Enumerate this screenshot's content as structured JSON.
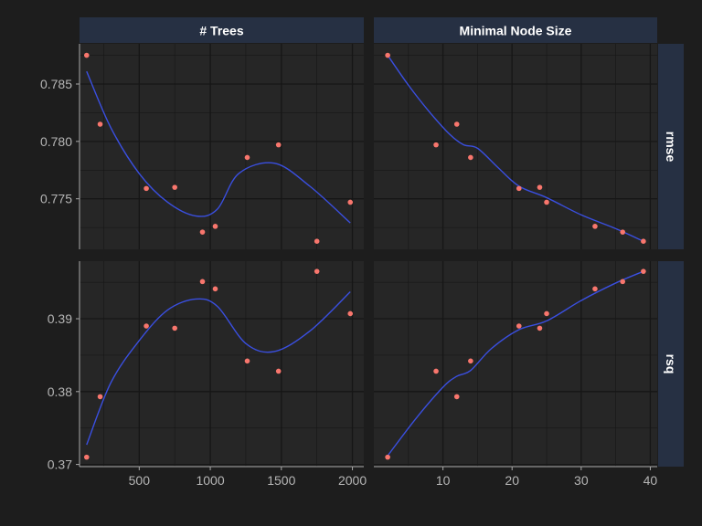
{
  "colors": {
    "background": "#1d1d1d",
    "panel": "#262626",
    "grid": "#161616",
    "strip": "#263043",
    "point": "#f8766d",
    "smooth": "#3a4fe0",
    "axis": "#a9a9a9"
  },
  "chart_data": {
    "type": "scatter",
    "facet_columns": [
      "# Trees",
      "Minimal Node Size"
    ],
    "facet_rows": [
      "rmse",
      "rsq"
    ],
    "x_axes": [
      {
        "column": "# Trees",
        "range": [
          80,
          2080
        ],
        "ticks": [
          500,
          1000,
          1500,
          2000
        ],
        "tick_labels": [
          "500",
          "1000",
          "1500",
          "2000"
        ]
      },
      {
        "column": "Minimal Node Size",
        "range": [
          0,
          41
        ],
        "ticks": [
          10,
          20,
          30,
          40
        ],
        "tick_labels": [
          "10",
          "20",
          "30",
          "40"
        ]
      }
    ],
    "y_axes": [
      {
        "row": "rmse",
        "range": [
          0.7706,
          0.7885
        ],
        "ticks": [
          0.775,
          0.78,
          0.785
        ],
        "tick_labels": [
          "0.775",
          "0.780",
          "0.785"
        ]
      },
      {
        "row": "rsq",
        "range": [
          0.3697,
          0.3979
        ],
        "ticks": [
          0.37,
          0.38,
          0.39
        ],
        "tick_labels": [
          "0.37",
          "0.38",
          "0.39"
        ]
      }
    ],
    "points": [
      {
        "trees": 130,
        "min_n": 2,
        "rmse": 0.7875,
        "rsq": 0.371
      },
      {
        "trees": 225,
        "min_n": 12,
        "rmse": 0.7815,
        "rsq": 0.3793
      },
      {
        "trees": 550,
        "min_n": 21,
        "rmse": 0.7759,
        "rsq": 0.389
      },
      {
        "trees": 750,
        "min_n": 24,
        "rmse": 0.776,
        "rsq": 0.3887
      },
      {
        "trees": 945,
        "min_n": 36,
        "rmse": 0.7721,
        "rsq": 0.3951
      },
      {
        "trees": 1035,
        "min_n": 32,
        "rmse": 0.7726,
        "rsq": 0.3941
      },
      {
        "trees": 1260,
        "min_n": 14,
        "rmse": 0.7786,
        "rsq": 0.3842
      },
      {
        "trees": 1480,
        "min_n": 9,
        "rmse": 0.7797,
        "rsq": 0.3828
      },
      {
        "trees": 1750,
        "min_n": 39,
        "rmse": 0.7713,
        "rsq": 0.3965
      },
      {
        "trees": 1985,
        "min_n": 25,
        "rmse": 0.7747,
        "rsq": 0.3907
      }
    ],
    "smooth": {
      "trees_rmse": [
        [
          130,
          0.7861
        ],
        [
          300,
          0.7812
        ],
        [
          500,
          0.7772
        ],
        [
          700,
          0.7747
        ],
        [
          900,
          0.7735
        ],
        [
          1050,
          0.7741
        ],
        [
          1200,
          0.7772
        ],
        [
          1450,
          0.7781
        ],
        [
          1700,
          0.7761
        ],
        [
          1985,
          0.7729
        ]
      ],
      "min_n_rmse": [
        [
          2,
          0.7875
        ],
        [
          5,
          0.7849
        ],
        [
          8,
          0.7826
        ],
        [
          11,
          0.7806
        ],
        [
          13,
          0.7797
        ],
        [
          15,
          0.7794
        ],
        [
          18,
          0.7777
        ],
        [
          21,
          0.7761
        ],
        [
          25,
          0.7751
        ],
        [
          30,
          0.7736
        ],
        [
          35,
          0.7724
        ],
        [
          39,
          0.7713
        ]
      ],
      "trees_rsq": [
        [
          130,
          0.3727
        ],
        [
          300,
          0.3812
        ],
        [
          500,
          0.387
        ],
        [
          700,
          0.3912
        ],
        [
          900,
          0.3927
        ],
        [
          1050,
          0.3917
        ],
        [
          1250,
          0.3866
        ],
        [
          1450,
          0.3855
        ],
        [
          1700,
          0.3883
        ],
        [
          1985,
          0.3937
        ]
      ],
      "min_n_rsq": [
        [
          2,
          0.3712
        ],
        [
          6,
          0.3762
        ],
        [
          10,
          0.3806
        ],
        [
          12,
          0.3821
        ],
        [
          14,
          0.3829
        ],
        [
          17,
          0.3859
        ],
        [
          21,
          0.3885
        ],
        [
          25,
          0.3897
        ],
        [
          30,
          0.3925
        ],
        [
          35,
          0.3949
        ],
        [
          39,
          0.3965
        ]
      ]
    }
  }
}
